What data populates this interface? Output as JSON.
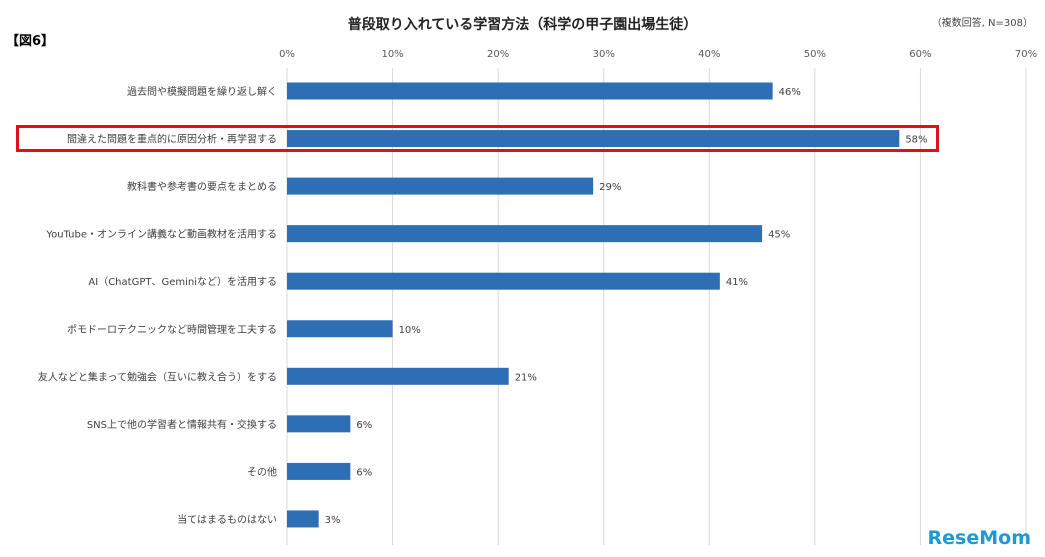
{
  "figure_label": "【図6】",
  "note": "（複数回答, N=308）",
  "logo": "ReseMom",
  "highlight_index": 1,
  "colors": {
    "bar": "#2e6eb5",
    "highlight": "#e0101a"
  },
  "chart_data": {
    "type": "bar",
    "orientation": "horizontal",
    "title": "普段取り入れている学習方法（科学の甲子園出場生徒）",
    "categories": [
      "過去問や模擬問題を繰り返し解く",
      "間違えた問題を重点的に原因分析・再学習する",
      "教科書や参考書の要点をまとめる",
      "YouTube・オンライン講義など動画教材を活用する",
      "AI（ChatGPT、Geminiなど）を活用する",
      "ポモドーロテクニックなど時間管理を工夫する",
      "友人などと集まって勉強会（互いに教え合う）をする",
      "SNS上で他の学習者と情報共有・交換する",
      "その他",
      "当てはまるものはない"
    ],
    "values": [
      46,
      58,
      29,
      45,
      41,
      10,
      21,
      6,
      6,
      3
    ],
    "data_labels": [
      "46%",
      "58%",
      "29%",
      "45%",
      "41%",
      "10%",
      "21%",
      "6%",
      "6%",
      "3%"
    ],
    "xlim": [
      0,
      70
    ],
    "ticks": [
      "0%",
      "10%",
      "20%",
      "30%",
      "40%",
      "50%",
      "60%",
      "70%"
    ],
    "grid": true
  }
}
